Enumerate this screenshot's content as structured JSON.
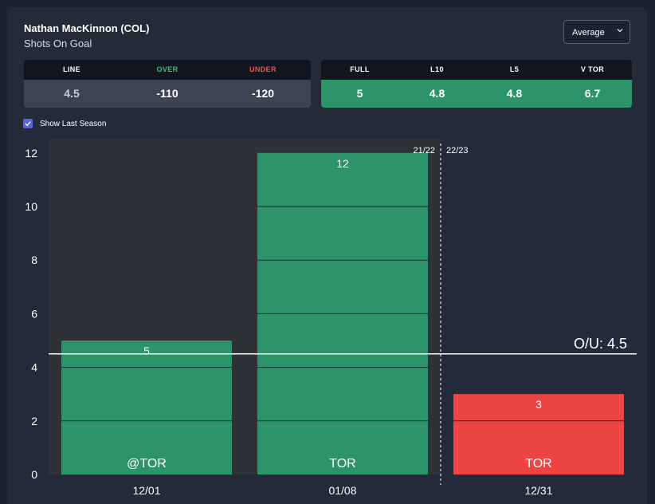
{
  "header": {
    "player_name": "Nathan MacKinnon (COL)",
    "stat_name": "Shots On Goal",
    "dropdown_value": "Average"
  },
  "odds_table": {
    "headers": [
      {
        "label": "LINE",
        "color": "#ffffff"
      },
      {
        "label": "OVER",
        "color": "#3ec17f"
      },
      {
        "label": "UNDER",
        "color": "#f05252"
      }
    ],
    "values": [
      "4.5",
      "-110",
      "-120"
    ]
  },
  "averages_table": {
    "headers": [
      "FULL",
      "L10",
      "L5",
      "V TOR"
    ],
    "values": [
      "5",
      "4.8",
      "4.8",
      "6.7"
    ]
  },
  "show_last_season": {
    "checked": true,
    "label": "Show Last Season"
  },
  "chart_data": {
    "type": "bar",
    "categories": [
      "12/01",
      "01/08",
      "12/31"
    ],
    "values": [
      5,
      12,
      3
    ],
    "bar_labels": [
      "@TOR",
      "TOR",
      "TOR"
    ],
    "value_labels": [
      "5",
      "12",
      "3"
    ],
    "bar_colors": [
      "#2d9368",
      "#2d9368",
      "#ef4444"
    ],
    "y_ticks": [
      "0",
      "2",
      "4",
      "6",
      "8",
      "10",
      "12"
    ],
    "ylim": [
      0,
      12.5
    ],
    "line_value": 4.5,
    "line_label": "O/U: 4.5",
    "season_labels": [
      "21/22",
      "22/23"
    ],
    "last_season_count": 2
  }
}
